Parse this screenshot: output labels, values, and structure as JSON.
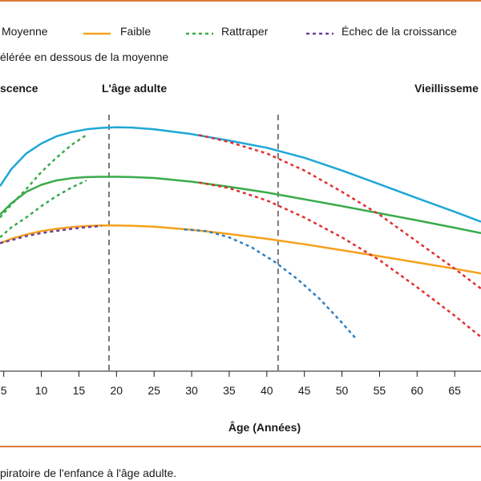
{
  "legend": [
    {
      "label": "Moyenne",
      "color": "#1ea7d6",
      "dash": "solid"
    },
    {
      "label": "Faible",
      "color": "#f5a11c",
      "dash": "solid"
    },
    {
      "label": "Rattraper",
      "color": "#3aab4b",
      "dash": "dotted"
    },
    {
      "label": "Échec de la croissance",
      "color": "#6a3fa0",
      "dash": "dotted"
    }
  ],
  "note": "élérée en dessous de la moyenne",
  "phases": [
    "scence",
    "L'âge adulte",
    "Vieillisseme"
  ],
  "caption": "piratoire de l'enfance à l'âge adulte.",
  "colors": {
    "rule": "#e07a3a",
    "decline": "#e03030",
    "decline_low": "#2f7fc1",
    "marker": "#777777"
  },
  "chart_data": {
    "type": "line",
    "xlabel": "Âge (Années)",
    "ylabel": "",
    "xlim": [
      4.5,
      68.5
    ],
    "ylim": [
      0,
      100
    ],
    "xticks": [
      5,
      10,
      15,
      20,
      25,
      30,
      35,
      40,
      45,
      50,
      55,
      60,
      65
    ],
    "grid": false,
    "legend_position": "top",
    "vertical_markers": [
      19,
      41.5
    ],
    "series": [
      {
        "name": "Moyenne",
        "style": "solid",
        "color": "#1ea7d6",
        "x": [
          4.5,
          6,
          8,
          10,
          12,
          14,
          16,
          18,
          20,
          22,
          25,
          30,
          35,
          40,
          45,
          50,
          55,
          60,
          65,
          68.5
        ],
        "y": [
          65,
          71,
          76.5,
          80,
          82.5,
          84,
          85,
          85.5,
          85.7,
          85.6,
          85,
          83.3,
          81,
          78.5,
          75,
          70.5,
          65.7,
          60.8,
          56,
          52.5
        ]
      },
      {
        "name": "",
        "style": "solid",
        "color": "#3aab4b",
        "x": [
          4.5,
          6,
          8,
          10,
          12,
          14,
          16,
          18,
          20,
          22,
          25,
          30,
          35,
          40,
          45,
          50,
          55,
          60,
          65,
          68.5
        ],
        "y": [
          55,
          59,
          63,
          65.5,
          67,
          67.8,
          68.2,
          68.3,
          68.3,
          68.2,
          67.9,
          66.6,
          64.8,
          62.8,
          60.4,
          58,
          55.5,
          53,
          50.4,
          48.5
        ]
      },
      {
        "name": "Faible",
        "style": "solid",
        "color": "#f5a11c",
        "x": [
          4.5,
          6,
          8,
          10,
          12,
          14,
          16,
          18,
          20,
          22,
          25,
          30,
          35,
          40,
          45,
          50,
          55,
          60,
          65,
          68.5
        ],
        "y": [
          45,
          46.5,
          48,
          49.2,
          50,
          50.6,
          51,
          51.2,
          51.2,
          51.1,
          50.8,
          49.7,
          48.2,
          46.5,
          44.6,
          42.5,
          40.4,
          38.2,
          36,
          34.3
        ]
      },
      {
        "name": "Rattraper",
        "style": "dotted",
        "color": "#3aab4b",
        "x": [
          4.5,
          6,
          8,
          10,
          12,
          14,
          16
        ],
        "y": [
          54,
          58.5,
          64,
          70,
          75,
          79.5,
          83
        ]
      },
      {
        "name": "Rattraper",
        "style": "dotted",
        "color": "#3aab4b",
        "x": [
          4.5,
          6,
          8,
          10,
          12,
          14,
          16
        ],
        "y": [
          47,
          50.5,
          54,
          58,
          61.5,
          64.5,
          67
        ]
      },
      {
        "name": "Échec de la croissance",
        "style": "dotted",
        "color": "#6a3fa0",
        "x": [
          4.5,
          6,
          8,
          10,
          12,
          14,
          16,
          18
        ],
        "y": [
          45,
          46,
          47.5,
          48.5,
          49.3,
          50,
          50.6,
          51
        ]
      },
      {
        "name": "",
        "style": "dotted",
        "color": "#e03030",
        "x": [
          31,
          35,
          40,
          45,
          50,
          55,
          60,
          65,
          68.5
        ],
        "y": [
          83,
          80.5,
          76.5,
          70.5,
          63,
          55,
          45.5,
          36,
          29
        ]
      },
      {
        "name": "",
        "style": "dotted",
        "color": "#e03030",
        "x": [
          31,
          35,
          40,
          45,
          50,
          55,
          60,
          65,
          68.5
        ],
        "y": [
          66.3,
          64.3,
          60,
          54,
          47,
          39,
          29.5,
          19.5,
          12
        ]
      },
      {
        "name": "",
        "style": "dotted",
        "color": "#2f7fc1",
        "x": [
          29,
          32,
          35,
          38,
          41,
          44,
          47,
          50,
          52
        ],
        "y": [
          49.8,
          49.2,
          47,
          43.5,
          38.5,
          32.5,
          25.5,
          17,
          11
        ]
      }
    ]
  }
}
